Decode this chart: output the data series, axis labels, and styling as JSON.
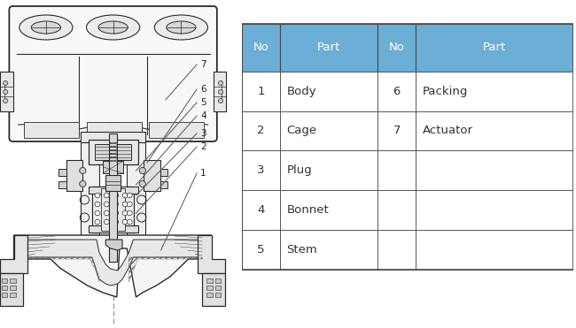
{
  "table_header_bg": "#6baed6",
  "table_header_text": "#ffffff",
  "table_cell_bg": "#ffffff",
  "table_border_color": "#4a4a4a",
  "headers": [
    "No",
    "Part",
    "No",
    "Part"
  ],
  "rows": [
    [
      "1",
      "Body",
      "6",
      "Packing"
    ],
    [
      "2",
      "Cage",
      "7",
      "Actuator"
    ],
    [
      "3",
      "Plug",
      "",
      ""
    ],
    [
      "4",
      "Bonnet",
      "",
      ""
    ],
    [
      "5",
      "Stem",
      "",
      ""
    ]
  ],
  "font_size_table": 9.5,
  "lc": "#2a2a2a",
  "bg": "#ffffff",
  "hatch_color": "#555555"
}
